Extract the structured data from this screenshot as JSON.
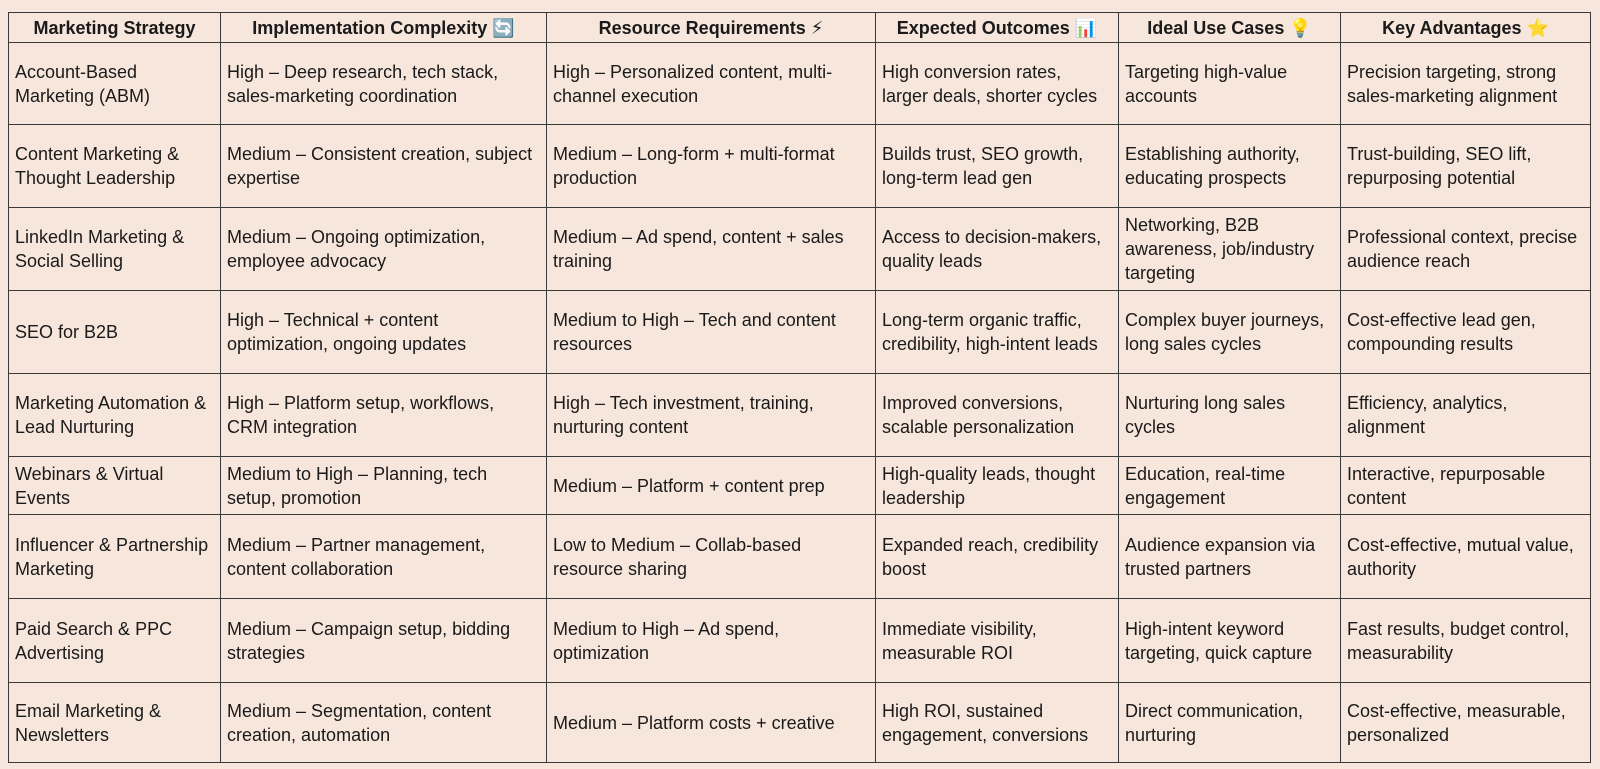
{
  "header": {
    "columns": [
      "Marketing Strategy",
      "Implementation Complexity 🔄",
      "Resource Requirements ⚡",
      "Expected Outcomes 📊",
      "Ideal Use Cases 💡",
      "Key Advantages ⭐"
    ]
  },
  "table": {
    "rows": [
      [
        "Account-Based Marketing (ABM)",
        "High – Deep research, tech stack, sales-marketing coordination",
        "High – Personalized content, multi-channel execution",
        "High conversion rates, larger deals, shorter cycles",
        "Targeting high-value accounts",
        "Precision targeting, strong sales-marketing alignment"
      ],
      [
        "Content Marketing & Thought Leadership",
        "Medium – Consistent creation, subject expertise",
        "Medium – Long-form + multi-format production",
        "Builds trust, SEO growth, long-term lead gen",
        "Establishing authority, educating prospects",
        "Trust-building, SEO lift, repurposing potential"
      ],
      [
        "LinkedIn Marketing & Social Selling",
        "Medium – Ongoing optimization, employee advocacy",
        "Medium – Ad spend, content + sales training",
        "Access to decision-makers, quality leads",
        "Networking, B2B awareness, job/industry targeting",
        "Professional context, precise audience reach"
      ],
      [
        "SEO for B2B",
        "High – Technical + content optimization, ongoing updates",
        "Medium to High – Tech and content resources",
        "Long-term organic traffic, credibility, high-intent leads",
        "Complex buyer journeys, long sales cycles",
        "Cost-effective lead gen, compounding results"
      ],
      [
        "Marketing Automation & Lead Nurturing",
        "High – Platform setup, workflows, CRM integration",
        "High – Tech investment, training, nurturing content",
        "Improved conversions, scalable personalization",
        "Nurturing long sales cycles",
        "Efficiency, analytics, alignment"
      ],
      [
        "Webinars & Virtual Events",
        "Medium to High – Planning, tech setup, promotion",
        "Medium – Platform + content prep",
        "High-quality leads, thought leadership",
        "Education, real-time engagement",
        "Interactive, repurposable content"
      ],
      [
        "Influencer & Partnership Marketing",
        "Medium – Partner management, content collaboration",
        "Low to Medium – Collab-based resource sharing",
        "Expanded reach, credibility boost",
        "Audience expansion via trusted partners",
        "Cost-effective, mutual value, authority"
      ],
      [
        "Paid Search & PPC Advertising",
        "Medium – Campaign setup, bidding strategies",
        "Medium to High – Ad spend, optimization",
        "Immediate visibility, measurable ROI",
        "High-intent keyword targeting, quick capture",
        "Fast results, budget control, measurability"
      ],
      [
        "Email Marketing & Newsletters",
        "Medium – Segmentation, content creation, automation",
        "Medium – Platform costs + creative",
        "High ROI, sustained engagement, conversions",
        "Direct communication, nurturing",
        "Cost-effective, measurable, personalized"
      ]
    ]
  }
}
